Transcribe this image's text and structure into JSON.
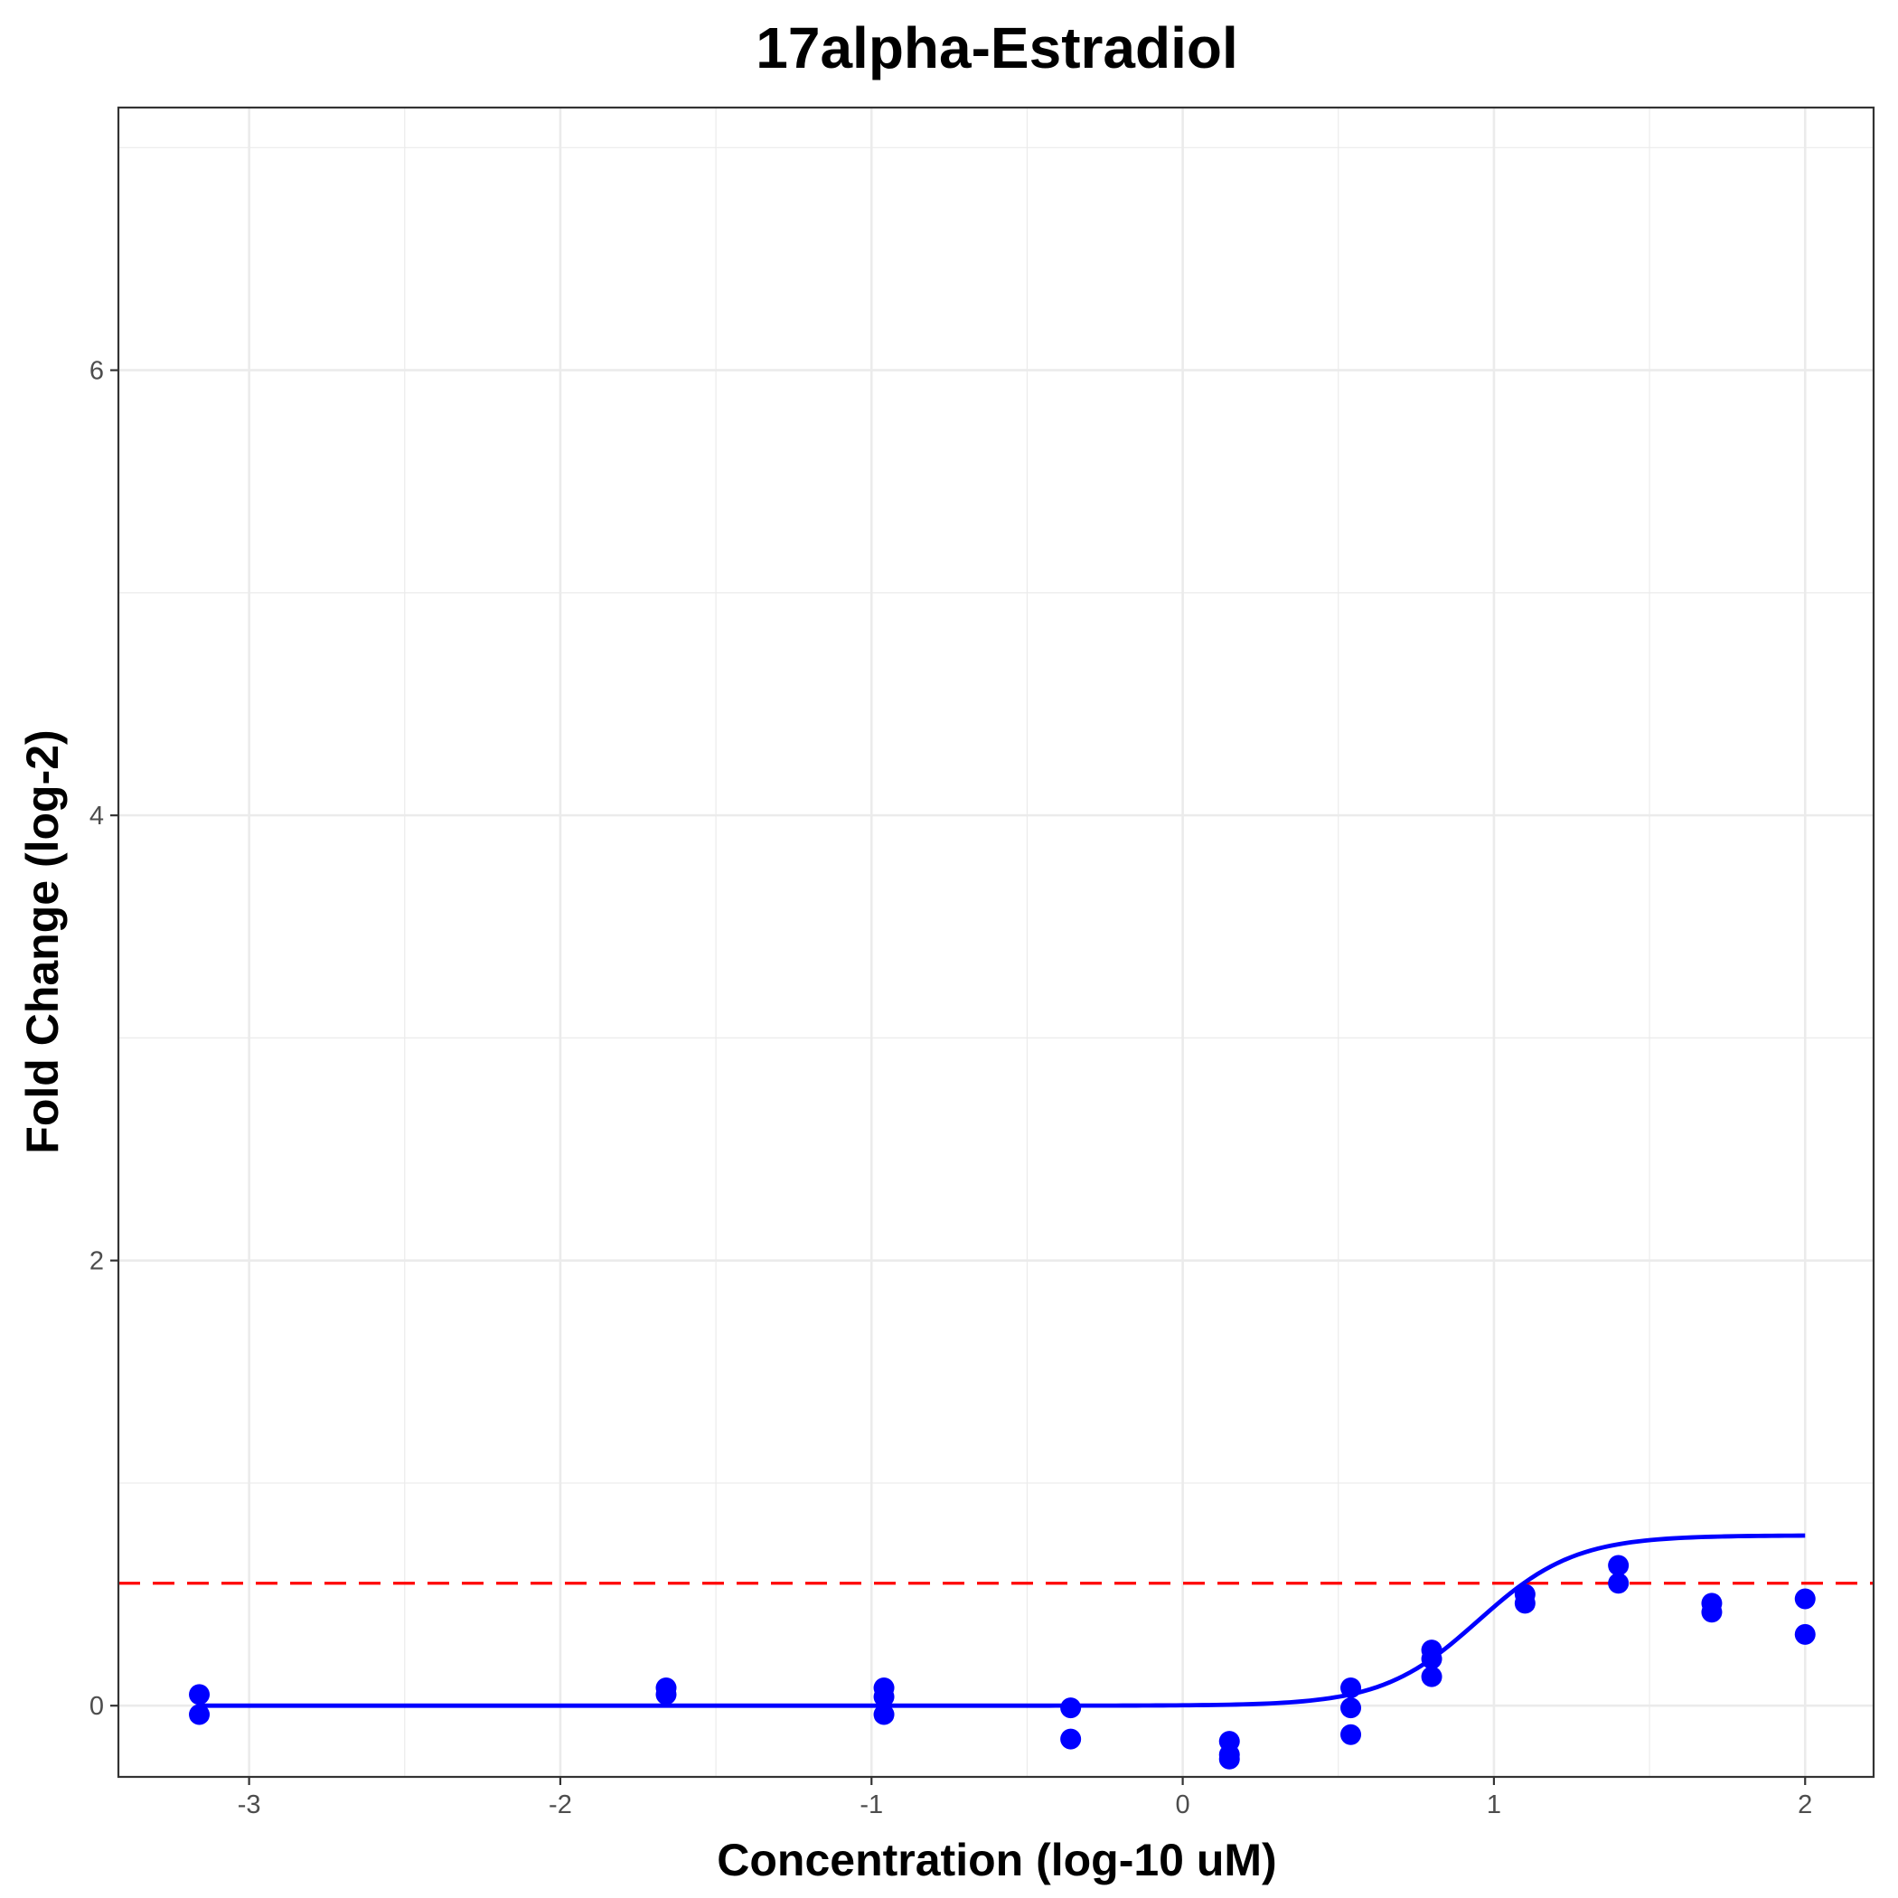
{
  "chart_data": {
    "type": "scatter",
    "title": "17alpha-Estradiol",
    "xlabel": "Concentration (log-10 uM)",
    "ylabel": "Fold Change (log-2)",
    "xlim": [
      -3.42,
      2.22
    ],
    "ylim": [
      -0.32,
      7.18
    ],
    "x_ticks": [
      -3,
      -2,
      -1,
      0,
      1,
      2
    ],
    "y_ticks": [
      0,
      2,
      4,
      6
    ],
    "grid": true,
    "colors": {
      "points": "#0000ff",
      "fit": "#0000ff",
      "threshold": "#ff0000"
    },
    "points": [
      {
        "x": -3.16,
        "y": 0.05
      },
      {
        "x": -3.16,
        "y": -0.04
      },
      {
        "x": -1.66,
        "y": 0.08
      },
      {
        "x": -1.66,
        "y": 0.05
      },
      {
        "x": -0.96,
        "y": 0.08
      },
      {
        "x": -0.96,
        "y": 0.04
      },
      {
        "x": -0.96,
        "y": -0.04
      },
      {
        "x": -0.36,
        "y": -0.01
      },
      {
        "x": -0.36,
        "y": -0.15
      },
      {
        "x": 0.15,
        "y": -0.16
      },
      {
        "x": 0.15,
        "y": -0.22
      },
      {
        "x": 0.15,
        "y": -0.24
      },
      {
        "x": 0.54,
        "y": 0.08
      },
      {
        "x": 0.54,
        "y": -0.01
      },
      {
        "x": 0.54,
        "y": -0.13
      },
      {
        "x": 0.8,
        "y": 0.25
      },
      {
        "x": 0.8,
        "y": 0.21
      },
      {
        "x": 0.8,
        "y": 0.13
      },
      {
        "x": 1.1,
        "y": 0.5
      },
      {
        "x": 1.1,
        "y": 0.46
      },
      {
        "x": 1.4,
        "y": 0.63
      },
      {
        "x": 1.4,
        "y": 0.55
      },
      {
        "x": 1.7,
        "y": 0.46
      },
      {
        "x": 1.7,
        "y": 0.42
      },
      {
        "x": 2.0,
        "y": 0.48
      },
      {
        "x": 2.0,
        "y": 0.32
      }
    ],
    "fit_curve": {
      "model": "hill",
      "bottom": 0.0,
      "top": 0.765,
      "ac50_log": 0.95,
      "slope": 2.8,
      "x_range": [
        -3.16,
        2.0
      ]
    },
    "threshold": 0.55
  }
}
